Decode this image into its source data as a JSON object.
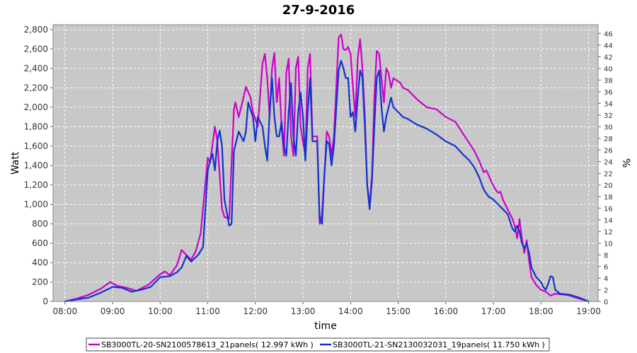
{
  "chart_data": {
    "type": "line",
    "title": "27-9-2016",
    "xlabel": "time",
    "ylabel": "Watt",
    "y2label": "%",
    "xlim": [
      7.75,
      19.2
    ],
    "ylim": [
      0,
      2850
    ],
    "y2lim": [
      0,
      47.5
    ],
    "x_ticks": [
      8,
      9,
      10,
      11,
      12,
      13,
      14,
      15,
      16,
      17,
      18,
      19
    ],
    "x_tick_labels": [
      "08:00",
      "09:00",
      "10:00",
      "11:00",
      "12:00",
      "13:00",
      "14:00",
      "15:00",
      "16:00",
      "17:00",
      "18:00",
      "19:00"
    ],
    "y_ticks": [
      0,
      200,
      400,
      600,
      800,
      1000,
      1200,
      1400,
      1600,
      1800,
      2000,
      2200,
      2400,
      2600,
      2800
    ],
    "y_tick_labels": [
      "0",
      "200",
      "400",
      "600",
      "800",
      "1,000",
      "1,200",
      "1,400",
      "1,600",
      "1,800",
      "2,000",
      "2,200",
      "2,400",
      "2,600",
      "2,800"
    ],
    "y2_ticks": [
      0,
      2,
      4,
      6,
      8,
      10,
      12,
      14,
      16,
      18,
      20,
      22,
      24,
      26,
      28,
      30,
      32,
      34,
      36,
      38,
      40,
      42,
      44,
      46
    ],
    "y2_tick_labels": [
      "0",
      "2",
      "4",
      "6",
      "8",
      "10",
      "12",
      "14",
      "16",
      "18",
      "20",
      "22",
      "24",
      "26",
      "28",
      "30",
      "32",
      "34",
      "36",
      "38",
      "40",
      "42",
      "44",
      "46"
    ],
    "grid": true,
    "legend_position": "bottom",
    "series": [
      {
        "name": "SB3000TL-20-SN2100578613_21panels( 12.997 kWh )",
        "color": "#cc00cc",
        "points": [
          [
            8.0,
            0
          ],
          [
            8.25,
            30
          ],
          [
            8.5,
            70
          ],
          [
            8.75,
            130
          ],
          [
            8.95,
            200
          ],
          [
            9.1,
            160
          ],
          [
            9.3,
            140
          ],
          [
            9.5,
            110
          ],
          [
            9.75,
            170
          ],
          [
            10.0,
            280
          ],
          [
            10.1,
            310
          ],
          [
            10.2,
            270
          ],
          [
            10.35,
            370
          ],
          [
            10.45,
            530
          ],
          [
            10.55,
            480
          ],
          [
            10.65,
            430
          ],
          [
            10.75,
            520
          ],
          [
            10.85,
            700
          ],
          [
            11.0,
            1480
          ],
          [
            11.05,
            1430
          ],
          [
            11.1,
            1620
          ],
          [
            11.15,
            1800
          ],
          [
            11.2,
            1660
          ],
          [
            11.25,
            1300
          ],
          [
            11.3,
            950
          ],
          [
            11.35,
            870
          ],
          [
            11.45,
            850
          ],
          [
            11.55,
            1980
          ],
          [
            11.58,
            2050
          ],
          [
            11.65,
            1900
          ],
          [
            11.75,
            2100
          ],
          [
            11.8,
            2210
          ],
          [
            11.9,
            2100
          ],
          [
            11.95,
            1950
          ],
          [
            12.05,
            1800
          ],
          [
            12.15,
            2450
          ],
          [
            12.2,
            2550
          ],
          [
            12.25,
            2300
          ],
          [
            12.3,
            1900
          ],
          [
            12.35,
            2400
          ],
          [
            12.4,
            2560
          ],
          [
            12.45,
            2050
          ],
          [
            12.5,
            2300
          ],
          [
            12.55,
            1800
          ],
          [
            12.6,
            1500
          ],
          [
            12.65,
            2350
          ],
          [
            12.7,
            2500
          ],
          [
            12.75,
            1700
          ],
          [
            12.8,
            1500
          ],
          [
            12.85,
            2400
          ],
          [
            12.9,
            2520
          ],
          [
            12.95,
            1800
          ],
          [
            13.05,
            1500
          ],
          [
            13.1,
            2400
          ],
          [
            13.15,
            2550
          ],
          [
            13.2,
            1700
          ],
          [
            13.3,
            1700
          ],
          [
            13.35,
            800
          ],
          [
            13.4,
            900
          ],
          [
            13.45,
            1300
          ],
          [
            13.5,
            1750
          ],
          [
            13.55,
            1700
          ],
          [
            13.6,
            1500
          ],
          [
            13.65,
            1700
          ],
          [
            13.75,
            2720
          ],
          [
            13.8,
            2750
          ],
          [
            13.85,
            2600
          ],
          [
            13.9,
            2590
          ],
          [
            13.95,
            2620
          ],
          [
            14.0,
            2550
          ],
          [
            14.05,
            2200
          ],
          [
            14.1,
            1900
          ],
          [
            14.15,
            2500
          ],
          [
            14.2,
            2700
          ],
          [
            14.25,
            2400
          ],
          [
            14.3,
            1900
          ],
          [
            14.35,
            1200
          ],
          [
            14.4,
            1000
          ],
          [
            14.45,
            1300
          ],
          [
            14.5,
            2100
          ],
          [
            14.55,
            2580
          ],
          [
            14.6,
            2550
          ],
          [
            14.65,
            2300
          ],
          [
            14.7,
            2050
          ],
          [
            14.75,
            2400
          ],
          [
            14.8,
            2350
          ],
          [
            14.85,
            2200
          ],
          [
            14.9,
            2300
          ],
          [
            15.05,
            2250
          ],
          [
            15.1,
            2200
          ],
          [
            15.2,
            2180
          ],
          [
            15.4,
            2080
          ],
          [
            15.6,
            2000
          ],
          [
            15.8,
            1980
          ],
          [
            16.0,
            1900
          ],
          [
            16.2,
            1850
          ],
          [
            16.4,
            1700
          ],
          [
            16.6,
            1550
          ],
          [
            16.7,
            1450
          ],
          [
            16.8,
            1330
          ],
          [
            16.85,
            1350
          ],
          [
            16.9,
            1300
          ],
          [
            16.95,
            1240
          ],
          [
            17.05,
            1150
          ],
          [
            17.1,
            1120
          ],
          [
            17.15,
            1130
          ],
          [
            17.2,
            1050
          ],
          [
            17.3,
            950
          ],
          [
            17.4,
            850
          ],
          [
            17.45,
            780
          ],
          [
            17.5,
            650
          ],
          [
            17.55,
            850
          ],
          [
            17.6,
            650
          ],
          [
            17.65,
            500
          ],
          [
            17.7,
            630
          ],
          [
            17.75,
            420
          ],
          [
            17.8,
            250
          ],
          [
            17.9,
            170
          ],
          [
            18.0,
            120
          ],
          [
            18.1,
            100
          ],
          [
            18.2,
            60
          ],
          [
            18.3,
            80
          ],
          [
            18.5,
            70
          ],
          [
            18.6,
            60
          ],
          [
            18.8,
            30
          ],
          [
            19.0,
            0
          ]
        ]
      },
      {
        "name": "SB3000TL-21-SN2130032031_19panels( 11.750 kWh )",
        "color": "#1133cc",
        "points": [
          [
            8.0,
            0
          ],
          [
            8.25,
            20
          ],
          [
            8.5,
            40
          ],
          [
            8.75,
            90
          ],
          [
            9.0,
            150
          ],
          [
            9.2,
            140
          ],
          [
            9.4,
            100
          ],
          [
            9.6,
            120
          ],
          [
            9.8,
            150
          ],
          [
            10.0,
            250
          ],
          [
            10.2,
            260
          ],
          [
            10.35,
            300
          ],
          [
            10.45,
            350
          ],
          [
            10.55,
            470
          ],
          [
            10.65,
            410
          ],
          [
            10.8,
            480
          ],
          [
            10.9,
            560
          ],
          [
            11.0,
            1350
          ],
          [
            11.05,
            1450
          ],
          [
            11.1,
            1520
          ],
          [
            11.15,
            1350
          ],
          [
            11.2,
            1650
          ],
          [
            11.25,
            1760
          ],
          [
            11.3,
            1600
          ],
          [
            11.35,
            1050
          ],
          [
            11.45,
            780
          ],
          [
            11.5,
            800
          ],
          [
            11.55,
            1550
          ],
          [
            11.65,
            1750
          ],
          [
            11.75,
            1650
          ],
          [
            11.8,
            1750
          ],
          [
            11.85,
            2050
          ],
          [
            11.95,
            1900
          ],
          [
            12.0,
            1650
          ],
          [
            12.05,
            1900
          ],
          [
            12.15,
            1800
          ],
          [
            12.2,
            1600
          ],
          [
            12.25,
            1450
          ],
          [
            12.3,
            1950
          ],
          [
            12.35,
            2300
          ],
          [
            12.4,
            1900
          ],
          [
            12.45,
            1700
          ],
          [
            12.5,
            1700
          ],
          [
            12.55,
            1850
          ],
          [
            12.6,
            1600
          ],
          [
            12.65,
            1500
          ],
          [
            12.7,
            1950
          ],
          [
            12.75,
            2250
          ],
          [
            12.8,
            1700
          ],
          [
            12.85,
            1500
          ],
          [
            12.9,
            1950
          ],
          [
            12.95,
            2150
          ],
          [
            13.0,
            1900
          ],
          [
            13.05,
            1450
          ],
          [
            13.1,
            1950
          ],
          [
            13.15,
            2300
          ],
          [
            13.2,
            1650
          ],
          [
            13.3,
            1650
          ],
          [
            13.35,
            850
          ],
          [
            13.4,
            800
          ],
          [
            13.45,
            1300
          ],
          [
            13.5,
            1650
          ],
          [
            13.55,
            1620
          ],
          [
            13.6,
            1400
          ],
          [
            13.65,
            1600
          ],
          [
            13.75,
            2380
          ],
          [
            13.8,
            2480
          ],
          [
            13.85,
            2400
          ],
          [
            13.9,
            2300
          ],
          [
            13.95,
            2300
          ],
          [
            14.0,
            1900
          ],
          [
            14.05,
            1950
          ],
          [
            14.1,
            1750
          ],
          [
            14.15,
            2100
          ],
          [
            14.2,
            2380
          ],
          [
            14.25,
            2300
          ],
          [
            14.3,
            1800
          ],
          [
            14.35,
            1200
          ],
          [
            14.4,
            950
          ],
          [
            14.45,
            1250
          ],
          [
            14.5,
            1800
          ],
          [
            14.55,
            2300
          ],
          [
            14.6,
            2380
          ],
          [
            14.65,
            2000
          ],
          [
            14.7,
            1750
          ],
          [
            14.75,
            1900
          ],
          [
            14.8,
            2000
          ],
          [
            14.85,
            2100
          ],
          [
            14.9,
            2000
          ],
          [
            15.0,
            1950
          ],
          [
            15.1,
            1900
          ],
          [
            15.2,
            1880
          ],
          [
            15.4,
            1820
          ],
          [
            15.6,
            1780
          ],
          [
            15.8,
            1720
          ],
          [
            16.0,
            1650
          ],
          [
            16.2,
            1600
          ],
          [
            16.35,
            1520
          ],
          [
            16.5,
            1450
          ],
          [
            16.6,
            1380
          ],
          [
            16.7,
            1280
          ],
          [
            16.8,
            1150
          ],
          [
            16.9,
            1080
          ],
          [
            17.0,
            1050
          ],
          [
            17.1,
            1000
          ],
          [
            17.2,
            950
          ],
          [
            17.3,
            900
          ],
          [
            17.4,
            750
          ],
          [
            17.45,
            720
          ],
          [
            17.5,
            780
          ],
          [
            17.55,
            720
          ],
          [
            17.6,
            600
          ],
          [
            17.65,
            550
          ],
          [
            17.7,
            600
          ],
          [
            17.75,
            500
          ],
          [
            17.8,
            350
          ],
          [
            17.85,
            300
          ],
          [
            17.9,
            250
          ],
          [
            18.0,
            200
          ],
          [
            18.05,
            150
          ],
          [
            18.1,
            120
          ],
          [
            18.15,
            180
          ],
          [
            18.2,
            260
          ],
          [
            18.25,
            250
          ],
          [
            18.3,
            120
          ],
          [
            18.4,
            80
          ],
          [
            18.6,
            70
          ],
          [
            18.8,
            40
          ],
          [
            19.0,
            0
          ]
        ]
      }
    ]
  }
}
